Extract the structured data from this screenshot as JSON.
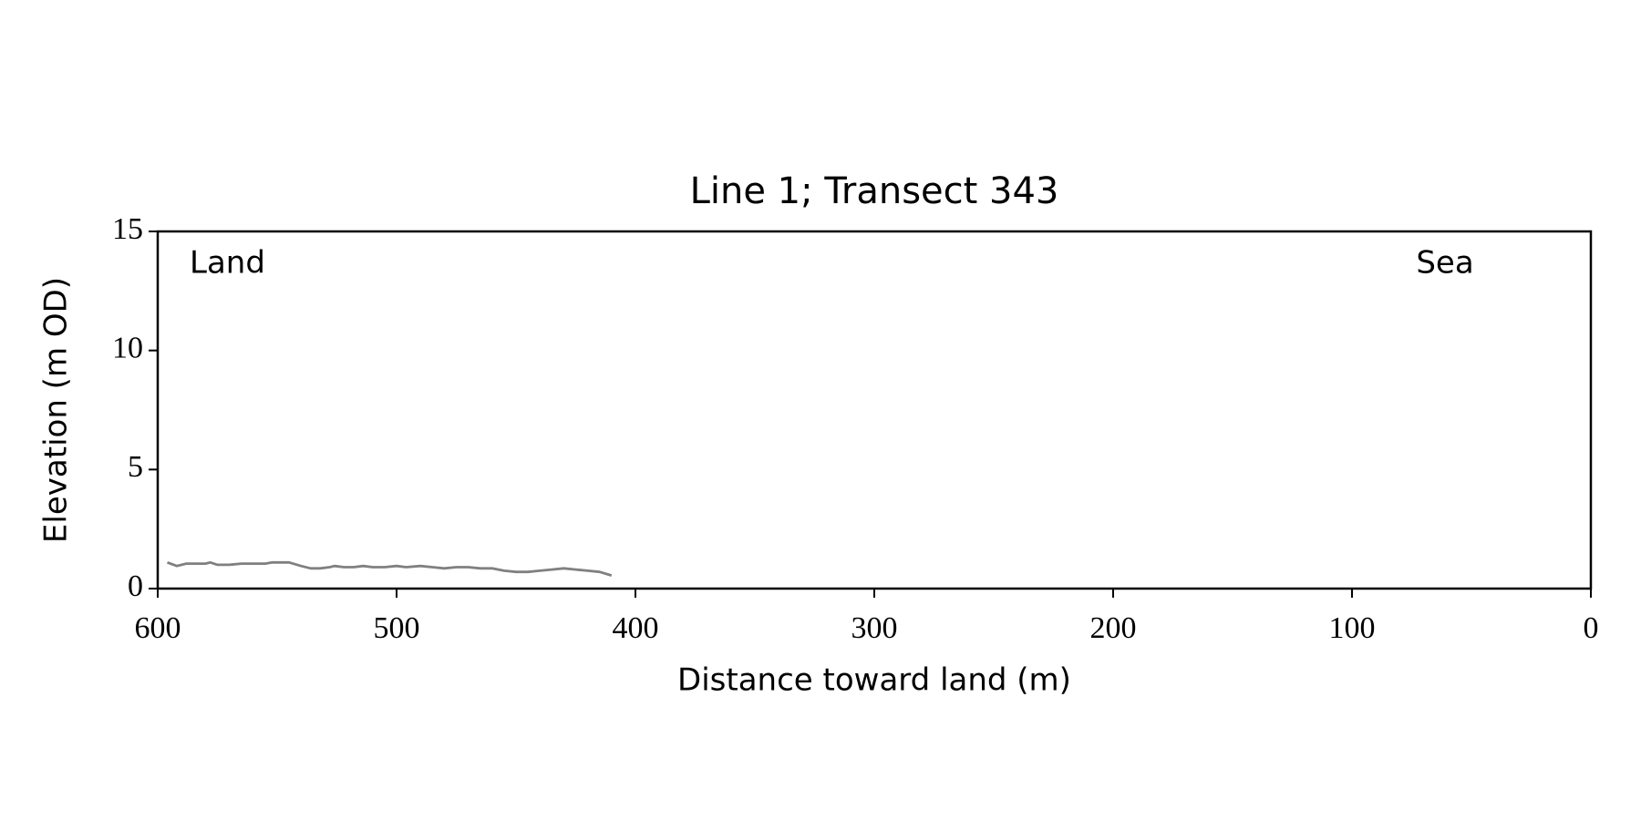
{
  "chart_data": {
    "type": "line",
    "title": "Line 1; Transect 343",
    "xlabel": "Distance toward land (m)",
    "ylabel": "Elevation (m OD)",
    "annotations": [
      "Land",
      "Sea"
    ],
    "xlim": [
      600,
      0
    ],
    "xticks": [
      600,
      500,
      400,
      300,
      200,
      100,
      0
    ],
    "ylim": [
      0,
      15
    ],
    "yticks": [
      0,
      5,
      10,
      15
    ],
    "grid": false,
    "x": [
      596,
      592,
      588,
      584,
      580,
      578,
      575,
      570,
      565,
      560,
      555,
      552,
      548,
      545,
      540,
      536,
      532,
      528,
      526,
      522,
      518,
      514,
      510,
      505,
      500,
      496,
      490,
      485,
      480,
      475,
      470,
      465,
      460,
      455,
      450,
      445,
      440,
      435,
      430,
      425,
      420,
      415,
      410
    ],
    "series": [
      {
        "color": "#808080",
        "values": [
          1.1,
          0.95,
          1.05,
          1.05,
          1.05,
          1.1,
          1.0,
          1.0,
          1.05,
          1.05,
          1.05,
          1.1,
          1.1,
          1.1,
          0.95,
          0.85,
          0.85,
          0.9,
          0.95,
          0.9,
          0.9,
          0.95,
          0.9,
          0.9,
          0.95,
          0.9,
          0.95,
          0.9,
          0.85,
          0.9,
          0.9,
          0.85,
          0.85,
          0.75,
          0.7,
          0.7,
          0.75,
          0.8,
          0.85,
          0.8,
          0.75,
          0.7,
          0.55
        ]
      }
    ]
  }
}
